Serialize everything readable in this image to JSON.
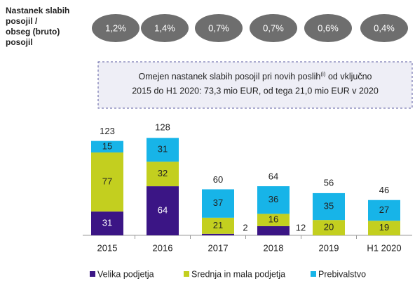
{
  "chart_data": {
    "type": "stacked_bar",
    "ratio_label": [
      "Nastanek slabih",
      "posojil /",
      "obseg (bruto)",
      "posojil"
    ],
    "ratios": [
      1.2,
      1.4,
      0.7,
      0.7,
      0.6,
      0.4
    ],
    "ratio_labels": [
      "1,2%",
      "1,4%",
      "0,7%",
      "0,7%",
      "0,6%",
      "0,4%"
    ],
    "annotation": [
      "Omejen nastanek slabih posojil pri novih poslih",
      "(i)",
      " od vključno",
      "2015 do H1 2020: 73,3 mio EUR, od tega 21,0 mio EUR v 2020"
    ],
    "categories": [
      "2015",
      "2016",
      "2017",
      "2018",
      "2019",
      "H1 2020"
    ],
    "series": [
      {
        "name": "Velika podjetja",
        "color": "#3b1585",
        "values": [
          31,
          64,
          2,
          12,
          null,
          null
        ]
      },
      {
        "name": "Srednja in mala podjetja",
        "color": "#c3cf1f",
        "values": [
          77,
          32,
          21,
          16,
          20,
          19
        ]
      },
      {
        "name": "Prebivalstvo",
        "color": "#17b4e8",
        "values": [
          15,
          31,
          37,
          36,
          35,
          27
        ]
      }
    ],
    "totals": [
      123,
      128,
      60,
      64,
      56,
      46
    ],
    "ylim": [
      0,
      130
    ]
  }
}
